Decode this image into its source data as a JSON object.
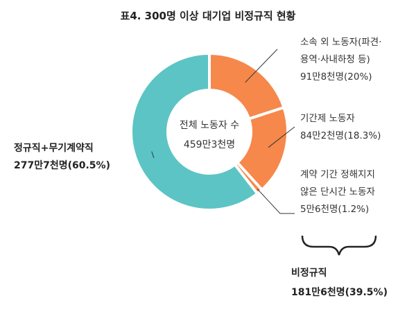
{
  "chart_data": {
    "type": "pie",
    "title": "표4. 300명 이상 대기업 비정규직 현황",
    "center_label": [
      "전체 노동자 수",
      "459만3천명"
    ],
    "slices": [
      {
        "label_lines": [
          "소속 외 노동자(파견·",
          "용역·사내하청 등)"
        ],
        "value_text": "91만8천명(20%)",
        "percent": 20.0,
        "color": "#f5884a"
      },
      {
        "label_lines": [
          "기간제 노동자"
        ],
        "value_text": "84만2천명(18.3%)",
        "percent": 18.3,
        "color": "#f5884a"
      },
      {
        "label_lines": [
          "계약 기간 정해지지",
          "않은 단시간 노동자"
        ],
        "value_text": "5만6천명(1.2%)",
        "percent": 1.2,
        "color": "#f5884a"
      },
      {
        "label_lines": [
          "정규직+무기계약직"
        ],
        "value_text": "277만7천명(60.5%)",
        "percent": 60.5,
        "color": "#5cc4c4"
      }
    ],
    "group_label": [
      "비정규직",
      "181만6천명(39.5%)"
    ],
    "legend": "none"
  }
}
